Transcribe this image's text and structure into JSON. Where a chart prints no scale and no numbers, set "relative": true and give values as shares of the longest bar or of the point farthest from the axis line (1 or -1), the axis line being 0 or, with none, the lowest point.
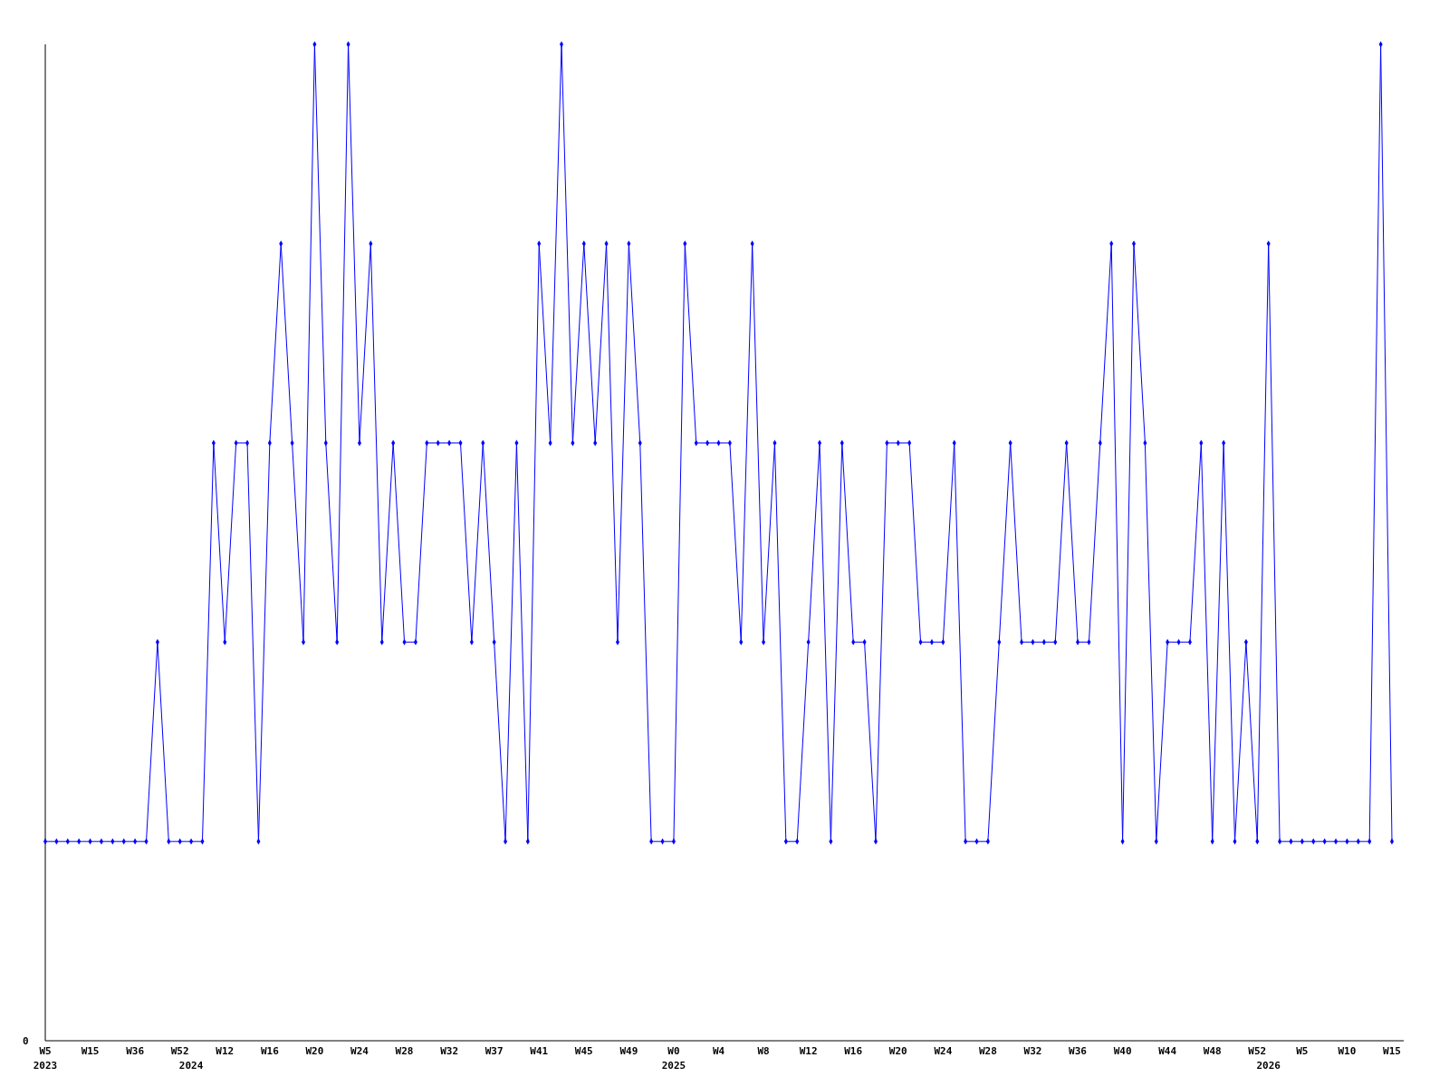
{
  "chart_data": {
    "type": "line",
    "relative": true,
    "marker": "diamond",
    "line_style": "solid",
    "annotations": [
      "0"
    ],
    "categories": [
      "W5\n2023",
      null,
      null,
      null,
      "W15",
      null,
      null,
      null,
      "W36",
      null,
      null,
      null,
      "W52",
      "\n2024",
      null,
      null,
      "W12",
      null,
      null,
      null,
      "W16",
      null,
      null,
      null,
      "W20",
      null,
      null,
      null,
      "W24",
      null,
      null,
      null,
      "W28",
      null,
      null,
      null,
      "W32",
      null,
      null,
      null,
      "W37",
      null,
      null,
      null,
      "W41",
      null,
      null,
      null,
      "W45",
      null,
      null,
      null,
      "W49",
      null,
      null,
      null,
      "W0\n2025",
      null,
      null,
      null,
      "W4",
      null,
      null,
      null,
      "W8",
      null,
      null,
      null,
      "W12",
      null,
      null,
      null,
      "W16",
      null,
      null,
      null,
      "W20",
      null,
      null,
      null,
      "W24",
      null,
      null,
      null,
      "W28",
      null,
      null,
      null,
      "W32",
      null,
      null,
      null,
      "W36",
      null,
      null,
      null,
      "W40",
      null,
      null,
      null,
      "W44",
      null,
      null,
      null,
      "W48",
      null,
      null,
      null,
      "W52",
      "\n2026",
      null,
      null,
      "W5",
      null,
      null,
      null,
      "W10",
      null,
      null,
      null,
      "W15"
    ],
    "series": [
      {
        "color": "#0000ff",
        "values": [
          0.2,
          0.2,
          0.2,
          0.2,
          0.2,
          0.2,
          0.2,
          0.2,
          0.2,
          0.2,
          0.4,
          0.2,
          0.2,
          0.2,
          0.2,
          0.6,
          0.4,
          0.6,
          0.6,
          0.2,
          0.6,
          0.8,
          0.6,
          0.4,
          1,
          0.6,
          0.4,
          1,
          0.6,
          0.8,
          0.4,
          0.6,
          0.4,
          0.4,
          0.6,
          0.6,
          0.6,
          0.6,
          0.4,
          0.6,
          0.4,
          0.2,
          0.6,
          0.2,
          0.8,
          0.6,
          1,
          0.6,
          0.8,
          0.6,
          0.8,
          0.4,
          0.8,
          0.6,
          0.2,
          0.2,
          0.2,
          0.8,
          0.6,
          0.6,
          0.6,
          0.6,
          0.4,
          0.8,
          0.4,
          0.6,
          0.2,
          0.2,
          0.4,
          0.6,
          0.2,
          0.6,
          0.4,
          0.4,
          0.2,
          0.6,
          0.6,
          0.6,
          0.4,
          0.4,
          0.4,
          0.6,
          0.2,
          0.2,
          0.2,
          0.4,
          0.6,
          0.4,
          0.4,
          0.4,
          0.4,
          0.6,
          0.4,
          0.4,
          0.6,
          0.8,
          0.2,
          0.8,
          0.6,
          0.2,
          0.4,
          0.4,
          0.4,
          0.6,
          0.2,
          0.6,
          0.2,
          0.4,
          0.2,
          0.8,
          0.2,
          0.2,
          0.2,
          0.2,
          0.2,
          0.2,
          0.2,
          0.2,
          0.2,
          1,
          0.2
        ]
      }
    ]
  }
}
